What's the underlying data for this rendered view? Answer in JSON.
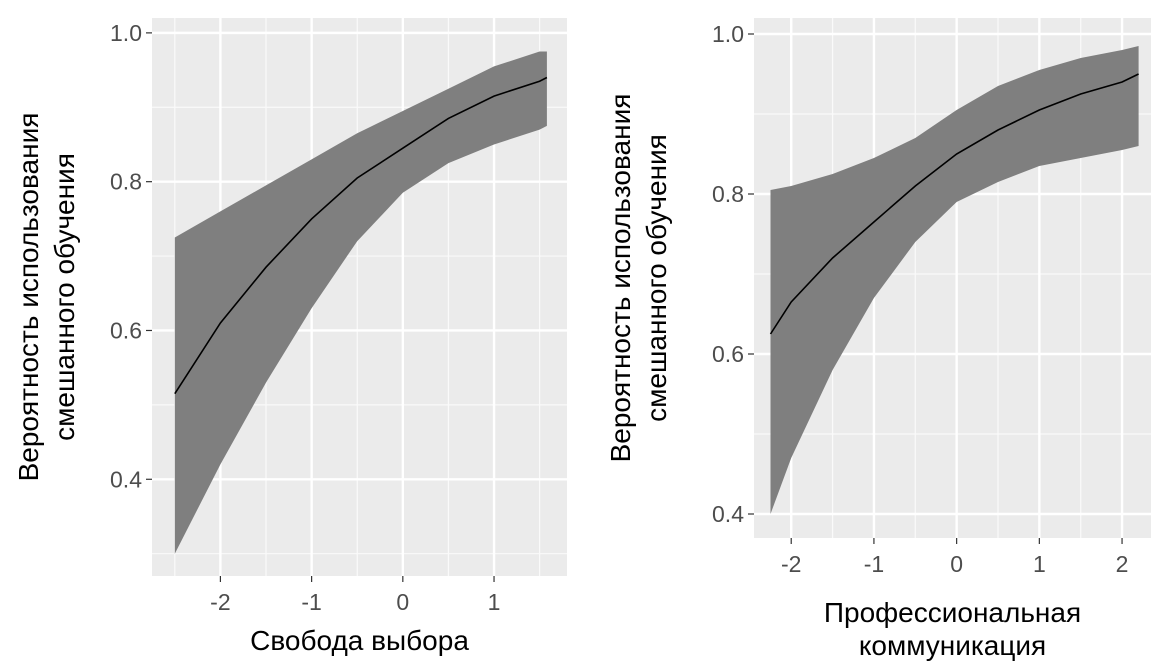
{
  "chart_data": [
    {
      "type": "line",
      "band": true,
      "xlabel": "Свобода выбора",
      "ylabel": [
        "Вероятность использования",
        "смешанного обучения"
      ],
      "xlim": [
        -2.75,
        1.8
      ],
      "ylim": [
        0.27,
        1.02
      ],
      "x_ticks": [
        -2,
        -1,
        0,
        1
      ],
      "y_ticks": [
        0.4,
        0.6,
        0.8,
        1.0
      ],
      "x_tick_labels": [
        "-2",
        "-1",
        "0",
        "1"
      ],
      "y_tick_labels": [
        "0.4",
        "0.6",
        "0.8",
        "1.0"
      ],
      "grid": true,
      "line_color": "#000000",
      "band_color": "#7f7f7f",
      "panel_background": "#ebebeb",
      "series": [
        {
          "x": [
            -2.5,
            -2.0,
            -1.5,
            -1.0,
            -0.5,
            0.0,
            0.5,
            1.0,
            1.5,
            1.58
          ],
          "y": [
            0.515,
            0.61,
            0.685,
            0.75,
            0.805,
            0.845,
            0.885,
            0.915,
            0.935,
            0.94
          ],
          "lower": [
            0.3,
            0.42,
            0.53,
            0.63,
            0.72,
            0.785,
            0.825,
            0.85,
            0.87,
            0.875
          ],
          "upper": [
            0.725,
            0.76,
            0.795,
            0.83,
            0.865,
            0.895,
            0.925,
            0.955,
            0.975,
            0.975
          ]
        }
      ]
    },
    {
      "type": "line",
      "band": true,
      "xlabel": [
        "Профессиональная",
        "коммуникация"
      ],
      "ylabel": [
        "Вероятность использования",
        "смешанного обучения"
      ],
      "xlim": [
        -2.45,
        2.35
      ],
      "ylim": [
        0.37,
        1.02
      ],
      "x_ticks": [
        -2,
        -1,
        0,
        1,
        2
      ],
      "y_ticks": [
        0.4,
        0.6,
        0.8,
        1.0
      ],
      "x_tick_labels": [
        "-2",
        "-1",
        "0",
        "1",
        "2"
      ],
      "y_tick_labels": [
        "0.4",
        "0.6",
        "0.8",
        "1.0"
      ],
      "grid": true,
      "line_color": "#000000",
      "band_color": "#7f7f7f",
      "panel_background": "#ebebeb",
      "series": [
        {
          "x": [
            -2.25,
            -2.0,
            -1.5,
            -1.0,
            -0.5,
            0.0,
            0.5,
            1.0,
            1.5,
            2.0,
            2.2
          ],
          "y": [
            0.625,
            0.665,
            0.72,
            0.765,
            0.81,
            0.85,
            0.88,
            0.905,
            0.925,
            0.94,
            0.95
          ],
          "lower": [
            0.4,
            0.47,
            0.58,
            0.67,
            0.74,
            0.79,
            0.815,
            0.835,
            0.845,
            0.855,
            0.86
          ],
          "upper": [
            0.805,
            0.81,
            0.825,
            0.845,
            0.87,
            0.905,
            0.935,
            0.955,
            0.97,
            0.98,
            0.985
          ]
        }
      ]
    }
  ]
}
